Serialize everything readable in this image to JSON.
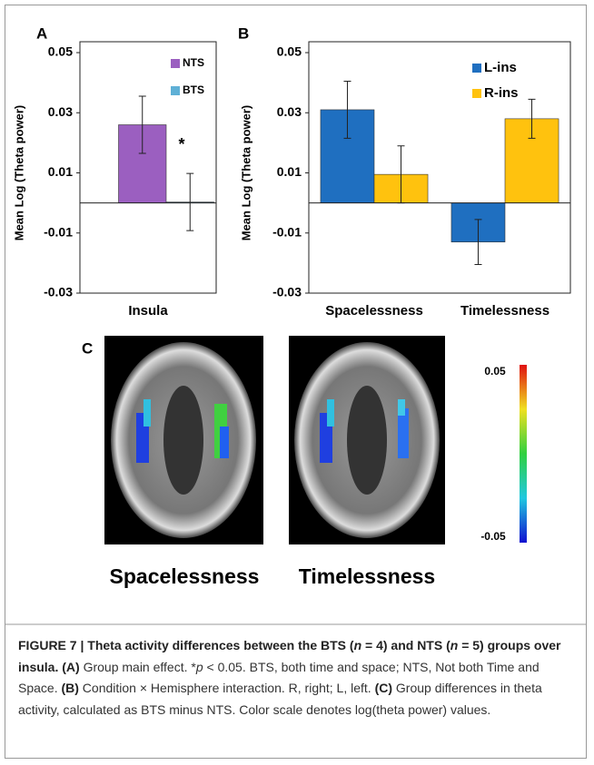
{
  "chart_data": [
    {
      "type": "bar",
      "panel": "A",
      "ylabel": "Mean Log (Theta power)",
      "xlabel": "Insula",
      "annotation": "*",
      "categories": [
        null
      ],
      "series": [
        {
          "name": "NTS",
          "color": "#9b5fc0",
          "values": [
            0.026
          ],
          "errors": [
            0.0095
          ]
        },
        {
          "name": "BTS",
          "color": "#5fb0d6",
          "values": [
            0.0003
          ],
          "errors": [
            0.0095
          ]
        }
      ],
      "ylim": [
        -0.03,
        0.05
      ],
      "yticks": [
        -0.03,
        -0.01,
        0.01,
        0.03,
        0.05
      ],
      "legend": "upper right"
    },
    {
      "type": "bar",
      "panel": "B",
      "ylabel": "Mean Log (Theta power)",
      "categories": [
        "Spacelessness",
        "Timelessness"
      ],
      "series": [
        {
          "name": "L-ins",
          "color": "#1f6fc0",
          "values": [
            0.031,
            -0.013
          ],
          "errors": [
            0.0095,
            0.0075
          ]
        },
        {
          "name": "R-ins",
          "color": "#ffc20e",
          "values": [
            0.0095,
            0.028
          ],
          "errors": [
            0.0095,
            0.0065
          ]
        }
      ],
      "ylim": [
        -0.03,
        0.05
      ],
      "yticks": [
        -0.03,
        -0.01,
        0.01,
        0.03,
        0.05
      ],
      "legend": "upper right"
    }
  ],
  "panel_c": {
    "label": "C",
    "titles": [
      "Spacelessness",
      "Timelessness"
    ],
    "colorbar": {
      "max": "0.05",
      "min": "-0.05"
    }
  },
  "caption": [
    "FIGURE 7 | Theta activity differences between the BTS (",
    "n",
    " = 4) and NTS (",
    "n",
    " = 5) groups over insula.",
    " (A)",
    " Group main effect. *",
    "p",
    " < 0.05. BTS, both time and space; NTS, Not both Time and Space.",
    " (B)",
    " Condition × Hemisphere interaction. R, right; L, left.",
    " (C)",
    " Group differences in theta activity, calculated as BTS minus NTS. Color scale denotes log(theta power) values."
  ]
}
